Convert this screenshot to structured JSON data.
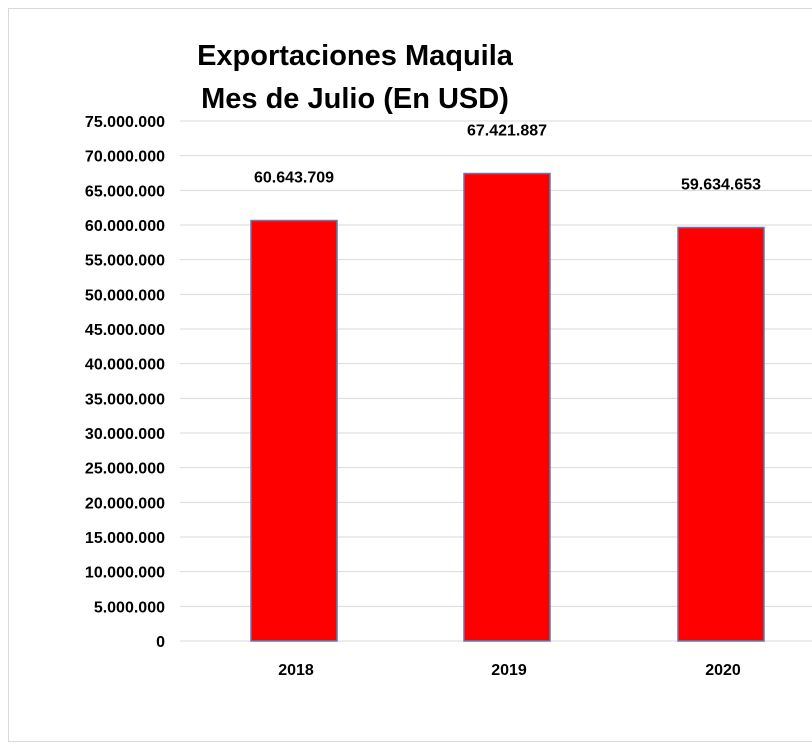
{
  "chart_data": {
    "type": "bar",
    "title_lines": [
      "Exportaciones Maquila",
      "Mes de Julio (En USD)"
    ],
    "categories": [
      "2018",
      "2019",
      "2020"
    ],
    "values": [
      60643709,
      67421887,
      59634653
    ],
    "data_labels": [
      "60.643.709",
      "67.421.887",
      "59.634.653"
    ],
    "ylim": [
      0,
      75000000
    ],
    "ytick_step": 5000000,
    "ytick_labels": [
      "0",
      "5.000.000",
      "10.000.000",
      "15.000.000",
      "20.000.000",
      "25.000.000",
      "30.000.000",
      "35.000.000",
      "40.000.000",
      "45.000.000",
      "50.000.000",
      "55.000.000",
      "60.000.000",
      "65.000.000",
      "70.000.000",
      "75.000.000"
    ],
    "bar_color": "#ff0000",
    "bar_edge_color": "#5b7bb5",
    "grid": true,
    "grid_color": "#d9d9d9",
    "legend": "none"
  }
}
